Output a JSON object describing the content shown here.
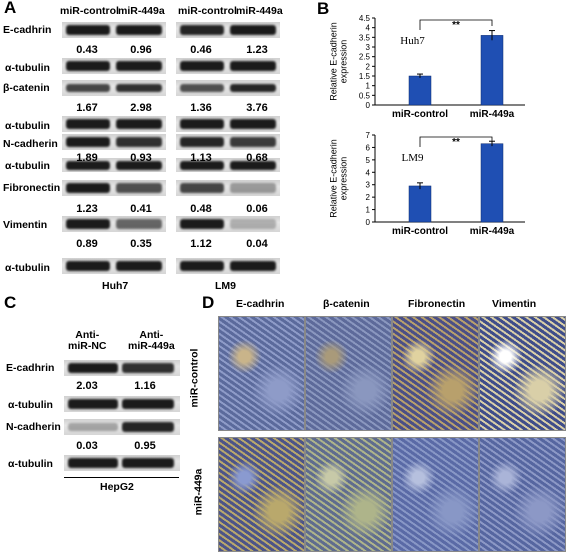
{
  "panelA": {
    "letter": "A",
    "headers": [
      "miR-control",
      "miR-449a",
      "miR-control",
      "miR-449a"
    ],
    "rows": [
      {
        "label": "E-cadhrin",
        "values": [
          "0.43",
          "0.96",
          "0.46",
          "1.23"
        ]
      },
      {
        "label": "α-tubulin"
      },
      {
        "label": "β-catenin",
        "values": [
          "1.67",
          "2.98",
          "1.36",
          "3.76"
        ]
      },
      {
        "label": "α-tubulin"
      },
      {
        "label": "N-cadherin",
        "values": [
          "1.89",
          "0.93",
          "1.13",
          "0.68"
        ]
      },
      {
        "label": "α-tubulin"
      },
      {
        "label": "Fibronectin",
        "values": [
          "1.23",
          "0.41",
          "0.48",
          "0.06"
        ]
      },
      {
        "label": "Vimentin",
        "values": [
          "0.89",
          "0.35",
          "1.12",
          "0.04"
        ]
      },
      {
        "label": "α-tubulin"
      }
    ],
    "cell_lines": [
      "Huh7",
      "LM9"
    ]
  },
  "panelB": {
    "letter": "B",
    "charts": [
      {
        "type": "bar",
        "annotation": "Huh7",
        "ylabel": "Relative E-cadherin expression",
        "categories": [
          "miR-control",
          "miR-449a"
        ],
        "values": [
          1.5,
          3.6
        ],
        "errors": [
          0.1,
          0.25
        ],
        "ylim": [
          0,
          4.5
        ],
        "ticks": [
          "0",
          "0.5",
          "1",
          "1.5",
          "2",
          "2.5",
          "3",
          "3.5",
          "4",
          "4.5"
        ],
        "sig": "**",
        "color": "#1f4fb3"
      },
      {
        "type": "bar",
        "annotation": "LM9",
        "ylabel": "Relative E-cadherin expression",
        "categories": [
          "miR-control",
          "miR-449a"
        ],
        "values": [
          2.9,
          6.3
        ],
        "errors": [
          0.25,
          0.2
        ],
        "ylim": [
          0,
          7
        ],
        "ticks": [
          "0",
          "1",
          "2",
          "3",
          "4",
          "5",
          "6",
          "7"
        ],
        "sig": "**",
        "color": "#1f4fb3"
      }
    ]
  },
  "panelC": {
    "letter": "C",
    "headers": [
      "Anti-\nmiR-NC",
      "Anti-\nmiR-449a"
    ],
    "rows": [
      {
        "label": "E-cadhrin",
        "values": [
          "2.03",
          "1.16"
        ]
      },
      {
        "label": "α-tubulin"
      },
      {
        "label": "N-cadherin",
        "values": [
          "0.03",
          "0.95"
        ]
      },
      {
        "label": "α-tubulin"
      }
    ],
    "cell_line": "HepG2"
  },
  "panelD": {
    "letter": "D",
    "columns": [
      "E-cadhrin",
      "β-catenin",
      "Fibronectin",
      "Vimentin"
    ],
    "rows": [
      "miR-control",
      "miR-449a"
    ]
  }
}
